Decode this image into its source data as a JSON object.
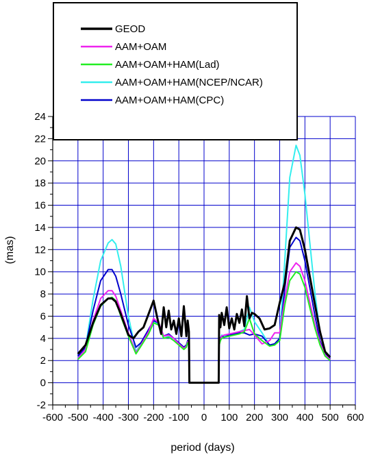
{
  "chart_data": {
    "type": "line",
    "title": "",
    "xlabel": "period (days)",
    "ylabel": "(mas)",
    "xlim": [
      -600,
      600
    ],
    "ylim": [
      -2,
      24
    ],
    "x_ticks": [
      -600,
      -500,
      -400,
      -300,
      -200,
      -100,
      0,
      100,
      200,
      300,
      400,
      500,
      600
    ],
    "y_ticks": [
      -2,
      0,
      2,
      4,
      6,
      8,
      10,
      12,
      14,
      16,
      18,
      20,
      22,
      24
    ],
    "x_tick_labels": [
      "-600",
      "-500",
      "-400",
      "-300",
      "-200",
      "-100",
      "0",
      "100",
      "200",
      "300",
      "400",
      "500",
      "600"
    ],
    "y_tick_labels": [
      "-2",
      "0",
      "2",
      "4",
      "6",
      "8",
      "10",
      "12",
      "14",
      "16",
      "18",
      "20",
      "22",
      "24"
    ],
    "grid": true,
    "grid_color": "#0000CC",
    "legend_position": "top-left",
    "series": [
      {
        "name": "AAM+OAM+HAM(NCEP/NCAR)",
        "color": "#33EEEE",
        "x": [
          -500,
          -470,
          -440,
          -410,
          -380,
          -365,
          -350,
          -330,
          -300,
          -270,
          -250,
          -220,
          -200,
          -180,
          -160,
          -140,
          -120,
          -100,
          -80,
          -70,
          -65,
          -60,
          -58,
          58,
          60,
          65,
          70,
          80,
          100,
          120,
          140,
          160,
          180,
          200,
          230,
          260,
          280,
          300,
          320,
          340,
          365,
          380,
          400,
          420,
          440,
          460,
          480,
          500
        ],
        "y": [
          2.3,
          3.2,
          7.5,
          11.0,
          12.6,
          12.9,
          12.5,
          10.5,
          6.0,
          2.8,
          3.5,
          4.8,
          5.6,
          5.2,
          4.0,
          4.2,
          4.0,
          3.5,
          3.2,
          3.4,
          3.8,
          3.6,
          0,
          0,
          3.6,
          4.0,
          4.3,
          4.2,
          4.3,
          4.5,
          4.6,
          4.8,
          6.8,
          5.5,
          4.5,
          3.4,
          3.5,
          4.0,
          11.0,
          18.5,
          21.4,
          20.5,
          17.0,
          12.5,
          8.0,
          4.5,
          2.8,
          2.2
        ]
      },
      {
        "name": "AAM+OAM+HAM(CPC)",
        "color": "#0000CC",
        "x": [
          -500,
          -470,
          -440,
          -410,
          -380,
          -365,
          -350,
          -330,
          -300,
          -270,
          -250,
          -220,
          -200,
          -180,
          -160,
          -140,
          -120,
          -100,
          -80,
          -70,
          -65,
          -60,
          -58,
          58,
          60,
          65,
          70,
          80,
          100,
          120,
          140,
          160,
          180,
          200,
          230,
          260,
          280,
          300,
          320,
          340,
          365,
          380,
          400,
          420,
          440,
          460,
          480,
          500
        ],
        "y": [
          2.4,
          3.2,
          6.5,
          9.2,
          10.2,
          10.2,
          9.6,
          8.0,
          5.2,
          3.2,
          3.6,
          4.8,
          5.6,
          5.4,
          4.2,
          4.4,
          4.0,
          3.6,
          3.2,
          3.4,
          3.8,
          3.6,
          0,
          0,
          3.6,
          4.0,
          4.2,
          4.1,
          4.3,
          4.4,
          4.5,
          4.5,
          4.3,
          4.4,
          4.2,
          3.4,
          3.5,
          4.0,
          8.5,
          12.2,
          13.1,
          12.8,
          11.0,
          8.5,
          6.0,
          3.8,
          2.6,
          2.2
        ]
      },
      {
        "name": "AAM+OAM",
        "color": "#EE22EE",
        "x": [
          -500,
          -470,
          -440,
          -410,
          -380,
          -365,
          -350,
          -330,
          -300,
          -270,
          -250,
          -220,
          -200,
          -180,
          -160,
          -140,
          -120,
          -100,
          -80,
          -70,
          -65,
          -60,
          -58,
          58,
          60,
          65,
          70,
          80,
          100,
          120,
          140,
          160,
          180,
          200,
          230,
          260,
          280,
          300,
          320,
          340,
          365,
          380,
          400,
          420,
          440,
          460,
          480,
          500
        ],
        "y": [
          2.2,
          3.0,
          5.6,
          7.6,
          8.3,
          8.3,
          7.8,
          6.5,
          4.5,
          2.7,
          3.4,
          4.6,
          5.8,
          5.4,
          4.2,
          4.3,
          4.0,
          3.5,
          3.1,
          3.3,
          3.7,
          3.5,
          0,
          0,
          3.5,
          3.9,
          4.2,
          4.3,
          4.4,
          4.5,
          4.6,
          4.7,
          4.8,
          4.3,
          3.5,
          3.8,
          4.5,
          4.5,
          7.5,
          10.0,
          10.8,
          10.5,
          9.2,
          7.2,
          5.2,
          3.6,
          2.5,
          2.1
        ]
      },
      {
        "name": "AAM+OAM+HAM(Lad)",
        "color": "#22EE22",
        "x": [
          -500,
          -470,
          -440,
          -410,
          -380,
          -365,
          -350,
          -330,
          -300,
          -270,
          -250,
          -220,
          -200,
          -180,
          -160,
          -140,
          -120,
          -100,
          -80,
          -70,
          -65,
          -60,
          -58,
          58,
          60,
          65,
          70,
          80,
          100,
          120,
          140,
          160,
          180,
          200,
          230,
          260,
          280,
          300,
          320,
          340,
          365,
          380,
          400,
          420,
          440,
          460,
          480,
          500
        ],
        "y": [
          2.1,
          2.8,
          5.2,
          6.9,
          7.6,
          7.7,
          7.4,
          6.0,
          4.2,
          2.6,
          3.3,
          4.4,
          5.4,
          5.2,
          4.0,
          4.1,
          3.8,
          3.4,
          3.0,
          3.2,
          3.6,
          3.4,
          0,
          0,
          3.4,
          3.8,
          4.0,
          4.1,
          4.2,
          4.3,
          4.4,
          4.6,
          5.8,
          4.4,
          3.8,
          3.3,
          3.4,
          3.8,
          7.0,
          9.2,
          10.0,
          9.8,
          8.6,
          6.7,
          4.9,
          3.4,
          2.4,
          2.0
        ]
      },
      {
        "name": "GEOD",
        "color": "#000000",
        "x": [
          -500,
          -470,
          -440,
          -410,
          -380,
          -365,
          -350,
          -330,
          -300,
          -280,
          -260,
          -240,
          -220,
          -200,
          -185,
          -170,
          -160,
          -150,
          -140,
          -130,
          -120,
          -110,
          -100,
          -90,
          -80,
          -70,
          -65,
          -60,
          -58,
          58,
          60,
          65,
          70,
          80,
          90,
          100,
          110,
          120,
          130,
          140,
          150,
          160,
          170,
          180,
          190,
          200,
          220,
          240,
          260,
          280,
          300,
          320,
          340,
          365,
          380,
          400,
          420,
          440,
          460,
          480,
          500
        ],
        "y": [
          2.6,
          3.4,
          5.4,
          7.0,
          7.6,
          7.6,
          7.3,
          6.2,
          4.3,
          4.0,
          4.6,
          5.0,
          6.2,
          7.4,
          5.8,
          4.4,
          6.8,
          5.0,
          6.5,
          4.8,
          5.6,
          4.4,
          5.8,
          4.2,
          6.9,
          4.2,
          5.6,
          4.6,
          0,
          0,
          6.1,
          5.0,
          6.3,
          5.2,
          6.8,
          4.9,
          5.8,
          4.8,
          6.2,
          5.4,
          6.6,
          5.1,
          7.8,
          5.8,
          6.3,
          6.2,
          5.8,
          4.8,
          4.9,
          5.2,
          7.2,
          9.0,
          12.8,
          14.0,
          13.8,
          12.0,
          9.5,
          7.0,
          4.6,
          2.8,
          2.3
        ]
      }
    ]
  }
}
